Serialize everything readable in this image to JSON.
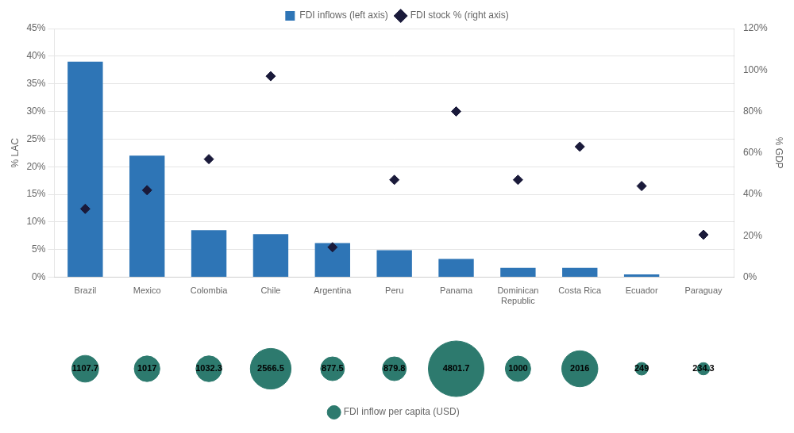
{
  "chart_data": [
    {
      "type": "bar",
      "categories": [
        "Brazil",
        "Mexico",
        "Colombia",
        "Chile",
        "Argentina",
        "Peru",
        "Panama",
        "Dominican\nRepublic",
        "Costa Rica",
        "Ecuador",
        "Paraguay"
      ],
      "series": [
        {
          "name": "FDI inflows (left axis)",
          "type": "bar",
          "color": "#2e75b6",
          "values": [
            39.0,
            22.0,
            8.5,
            7.8,
            6.2,
            4.9,
            3.3,
            1.7,
            1.7,
            0.5,
            0.1
          ]
        },
        {
          "name": "FDI stock % (right axis)",
          "type": "scatter",
          "marker": "diamond",
          "color": "#1a1a3a",
          "axis": "y2",
          "values": [
            33.0,
            42.0,
            57.0,
            97.0,
            14.5,
            47.0,
            80.0,
            47.0,
            63.0,
            44.0,
            20.5
          ]
        }
      ],
      "ylabel": "% LAC",
      "y2label": "% GDP",
      "ylim": [
        0,
        45
      ],
      "yticks": [
        {
          "value": 0,
          "label": "0%"
        },
        {
          "value": 5,
          "label": "5%"
        },
        {
          "value": 10,
          "label": "10%"
        },
        {
          "value": 15,
          "label": "15%"
        },
        {
          "value": 20,
          "label": "20%"
        },
        {
          "value": 25,
          "label": "25%"
        },
        {
          "value": 30,
          "label": "30%"
        },
        {
          "value": 35,
          "label": "35%"
        },
        {
          "value": 40,
          "label": "40%"
        },
        {
          "value": 45,
          "label": "45%"
        }
      ],
      "y2lim": [
        0,
        120
      ],
      "y2ticks": [
        {
          "value": 0,
          "label": "0%"
        },
        {
          "value": 20,
          "label": "20%"
        },
        {
          "value": 40,
          "label": "40%"
        },
        {
          "value": 60,
          "label": "60%"
        },
        {
          "value": 80,
          "label": "80%"
        },
        {
          "value": 100,
          "label": "100%"
        },
        {
          "value": 120,
          "label": "120%"
        }
      ],
      "grid": true,
      "legend": "top"
    },
    {
      "type": "bubble",
      "categories": [
        "Brazil",
        "Mexico",
        "Colombia",
        "Chile",
        "Argentina",
        "Peru",
        "Panama",
        "Dominican\nRepublic",
        "Costa Rica",
        "Ecuador",
        "Paraguay"
      ],
      "series": [
        {
          "name": "FDI inflow per capita (USD)",
          "marker": "circle",
          "color": "#2d7a6e",
          "values": [
            1107.7,
            1017.0,
            1032.3,
            2566.5,
            877.5,
            879.8,
            4801.7,
            1000.0,
            2016.0,
            249.0,
            234.3
          ]
        }
      ],
      "data_labels": true,
      "tick_labels": false,
      "legend": "bottom"
    }
  ]
}
